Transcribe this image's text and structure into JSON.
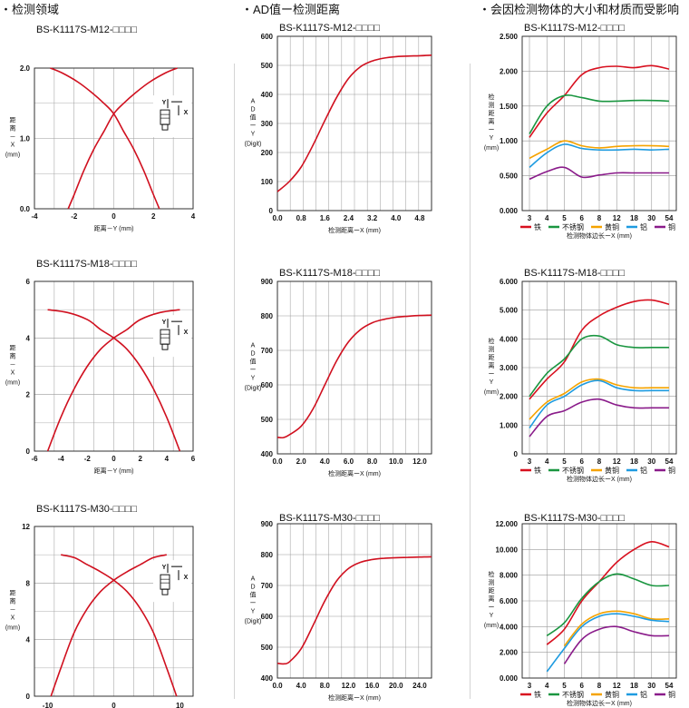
{
  "headers": [
    "・检测领域",
    "・AD值ー检测距离",
    "・会因检测物体的大小和材质而受影响"
  ],
  "colors": {
    "curve": "#d0101f",
    "grid": "#9a9a9a",
    "frame": "#222222"
  },
  "chart_data": [
    {
      "type": "line",
      "title": "BS-K1117S-M12-□□□□",
      "xlabel": "距离－Y",
      "xunit": "(mm)",
      "ylabel": "距离－X",
      "yunit": "(mm)",
      "xlim": [
        -4,
        4
      ],
      "ylim": [
        0,
        2
      ],
      "xticks": [
        "-4",
        "-2",
        "0",
        "2",
        "4"
      ],
      "yticks": [
        "0.0",
        "1.0",
        "2.0"
      ],
      "grid": true,
      "inset": "sensor-icon",
      "series": [
        {
          "color": "#d0101f",
          "x": [
            -3.2,
            -2.6,
            -1.8,
            -1.1,
            -0.5,
            0,
            0.5,
            1.0,
            1.5,
            2.0,
            2.3
          ],
          "y": [
            2.0,
            1.93,
            1.8,
            1.65,
            1.5,
            1.35,
            1.1,
            0.85,
            0.55,
            0.2,
            0
          ]
        },
        {
          "color": "#d0101f",
          "x": [
            -2.3,
            -2.0,
            -1.5,
            -1.0,
            -0.5,
            0,
            0.5,
            1.1,
            1.8,
            2.6,
            3.2
          ],
          "y": [
            0,
            0.2,
            0.55,
            0.85,
            1.1,
            1.35,
            1.5,
            1.65,
            1.8,
            1.93,
            2.0
          ]
        }
      ]
    },
    {
      "type": "line",
      "title": "BS-K1117S-M12-□□□□",
      "xlabel": "检测距离ーX",
      "xunit": "(mm)",
      "ylabel": "AD值ーY",
      "yunit": "(Digit)",
      "xlim": [
        0,
        5.2
      ],
      "ylim": [
        0,
        600
      ],
      "xticks": [
        "0.0",
        "0.8",
        "1.6",
        "2.4",
        "3.2",
        "4.0",
        "4.8"
      ],
      "yticks": [
        "0",
        "100",
        "200",
        "300",
        "400",
        "500",
        "600"
      ],
      "grid": true,
      "series": [
        {
          "color": "#d0101f",
          "x": [
            0,
            0.4,
            0.8,
            1.2,
            1.6,
            2.0,
            2.4,
            2.8,
            3.2,
            3.6,
            4.0,
            4.4,
            4.8,
            5.2
          ],
          "y": [
            65,
            100,
            150,
            225,
            310,
            390,
            455,
            495,
            515,
            525,
            530,
            532,
            533,
            535
          ]
        }
      ]
    },
    {
      "type": "line",
      "title": "BS-K1117S-M12-□□□□",
      "xlabel": "检测物体边长ーX",
      "xunit": "(mm)",
      "ylabel": "检测距离ーY",
      "yunit": "(mm)",
      "categories": [
        "3",
        "4",
        "5",
        "6",
        "8",
        "12",
        "18",
        "30",
        "54"
      ],
      "ylim": [
        0,
        2.5
      ],
      "yticks": [
        "0.000",
        "0.500",
        "1.000",
        "1.500",
        "2.000",
        "2.500"
      ],
      "grid": true,
      "series": [
        {
          "name": "铁",
          "color": "#d8101f",
          "values": [
            1.05,
            1.4,
            1.65,
            1.95,
            2.05,
            2.07,
            2.05,
            2.08,
            2.03
          ]
        },
        {
          "name": "不锈钢",
          "color": "#1a9640",
          "values": [
            1.1,
            1.5,
            1.65,
            1.62,
            1.57,
            1.57,
            1.58,
            1.58,
            1.57
          ]
        },
        {
          "name": "黄铜",
          "color": "#f5a300",
          "values": [
            0.75,
            0.88,
            1.0,
            0.93,
            0.9,
            0.92,
            0.93,
            0.93,
            0.92
          ]
        },
        {
          "name": "铝",
          "color": "#1e9be0",
          "values": [
            0.62,
            0.83,
            0.95,
            0.89,
            0.87,
            0.87,
            0.88,
            0.87,
            0.88
          ]
        },
        {
          "name": "铜",
          "color": "#8a1b8a",
          "values": [
            0.45,
            0.56,
            0.62,
            0.48,
            0.51,
            0.54,
            0.54,
            0.54,
            0.54
          ]
        }
      ]
    },
    {
      "type": "line",
      "title": "BS-K1117S-M18-□□□□",
      "xlabel": "距离－Y",
      "xunit": "(mm)",
      "ylabel": "距离－X",
      "yunit": "(mm)",
      "xlim": [
        -6,
        6
      ],
      "ylim": [
        0,
        6
      ],
      "xticks": [
        "-6",
        "-4",
        "-2",
        "0",
        "2",
        "4",
        "6"
      ],
      "yticks": [
        "0",
        "2",
        "4",
        "6"
      ],
      "grid": true,
      "inset": "sensor-icon",
      "series": [
        {
          "color": "#d0101f",
          "x": [
            -5,
            -3.5,
            -2,
            -1,
            0,
            1,
            2,
            3,
            4,
            5
          ],
          "y": [
            5.0,
            4.9,
            4.65,
            4.3,
            4.0,
            3.6,
            3.0,
            2.2,
            1.2,
            0
          ]
        },
        {
          "color": "#d0101f",
          "x": [
            -5,
            -4,
            -3,
            -2,
            -1,
            0,
            1,
            2,
            3.5,
            5
          ],
          "y": [
            0,
            1.2,
            2.2,
            3.0,
            3.6,
            4.0,
            4.3,
            4.65,
            4.9,
            5.0
          ]
        }
      ]
    },
    {
      "type": "line",
      "title": "BS-K1117S-M18-□□□□",
      "xlabel": "检测距离ーX",
      "xunit": "(mm)",
      "ylabel": "AD值ーY",
      "yunit": "(Digit)",
      "xlim": [
        0,
        13
      ],
      "ylim": [
        400,
        900
      ],
      "xticks": [
        "0.0",
        "2.0",
        "4.0",
        "6.0",
        "8.0",
        "10.0",
        "12.0"
      ],
      "yticks": [
        "400",
        "500",
        "600",
        "700",
        "800",
        "900"
      ],
      "grid": true,
      "series": [
        {
          "color": "#d0101f",
          "x": [
            0,
            0.5,
            1,
            2,
            3,
            4,
            5,
            6,
            7,
            8,
            9,
            10,
            11,
            12,
            13
          ],
          "y": [
            448,
            447,
            455,
            480,
            530,
            600,
            670,
            725,
            760,
            780,
            790,
            796,
            799,
            801,
            802
          ]
        }
      ]
    },
    {
      "type": "line",
      "title": "BS-K1117S-M18-□□□□",
      "xlabel": "检测物体边长ーX",
      "xunit": "(mm)",
      "ylabel": "检测距离ーY",
      "yunit": "(mm)",
      "categories": [
        "3",
        "4",
        "5",
        "6",
        "8",
        "12",
        "18",
        "30",
        "54"
      ],
      "ylim": [
        0,
        6
      ],
      "yticks": [
        "0",
        "1.000",
        "2.000",
        "3.000",
        "4.000",
        "5.000",
        "6.000"
      ],
      "grid": true,
      "series": [
        {
          "name": "铁",
          "color": "#d8101f",
          "values": [
            1.9,
            2.6,
            3.2,
            4.3,
            4.8,
            5.1,
            5.3,
            5.35,
            5.2
          ]
        },
        {
          "name": "不锈钢",
          "color": "#1a9640",
          "values": [
            2.0,
            2.8,
            3.3,
            4.0,
            4.1,
            3.8,
            3.7,
            3.7,
            3.7
          ]
        },
        {
          "name": "黄铜",
          "color": "#f5a300",
          "values": [
            1.2,
            1.8,
            2.1,
            2.5,
            2.6,
            2.4,
            2.3,
            2.3,
            2.3
          ]
        },
        {
          "name": "铝",
          "color": "#1e9be0",
          "values": [
            0.9,
            1.7,
            2.0,
            2.4,
            2.55,
            2.3,
            2.2,
            2.2,
            2.2
          ]
        },
        {
          "name": "铜",
          "color": "#8a1b8a",
          "values": [
            0.6,
            1.3,
            1.5,
            1.8,
            1.9,
            1.7,
            1.6,
            1.6,
            1.6
          ]
        }
      ]
    },
    {
      "type": "line",
      "title": "BS-K1117S-M30-□□□□",
      "xlabel": "距离－Y",
      "xunit": "(mm)",
      "ylabel": "距离－X",
      "yunit": "(mm)",
      "xlim": [
        -12,
        12
      ],
      "ylim": [
        0,
        12
      ],
      "xticks": [
        "-10",
        "0",
        "10"
      ],
      "xtickvals": [
        -10,
        0,
        10
      ],
      "yticks": [
        "0",
        "4",
        "8",
        "12"
      ],
      "grid": true,
      "inset": "sensor-icon",
      "series": [
        {
          "color": "#d0101f",
          "x": [
            -8,
            -6,
            -4,
            -2,
            0,
            2,
            4,
            6,
            8,
            9.5
          ],
          "y": [
            10,
            9.8,
            9.3,
            8.8,
            8.2,
            7.4,
            6.2,
            4.5,
            2,
            0
          ]
        },
        {
          "color": "#d0101f",
          "x": [
            -9.5,
            -8,
            -6,
            -4,
            -2,
            0,
            2,
            4,
            6,
            8
          ],
          "y": [
            0,
            2,
            4.5,
            6.2,
            7.4,
            8.2,
            8.8,
            9.3,
            9.8,
            10
          ]
        }
      ]
    },
    {
      "type": "line",
      "title": "BS-K1117S-M30-□□□□",
      "xlabel": "检测距离ーX",
      "xunit": "(mm)",
      "ylabel": "AD值ーY",
      "yunit": "(Digit)",
      "xlim": [
        0,
        26
      ],
      "ylim": [
        400,
        900
      ],
      "xticks": [
        "0.0",
        "4.0",
        "8.0",
        "12.0",
        "16.0",
        "20.0",
        "24.0"
      ],
      "yticks": [
        "400",
        "500",
        "600",
        "700",
        "800",
        "900"
      ],
      "grid": true,
      "series": [
        {
          "color": "#d0101f",
          "x": [
            0,
            1,
            2,
            4,
            6,
            8,
            10,
            12,
            14,
            16,
            18,
            20,
            22,
            24,
            26
          ],
          "y": [
            448,
            446,
            452,
            495,
            570,
            650,
            715,
            755,
            775,
            784,
            788,
            790,
            791,
            792,
            793
          ]
        }
      ]
    },
    {
      "type": "line",
      "title": "BS-K1117S-M30-□□□□",
      "xlabel": "检测物体边长ーX",
      "xunit": "(mm)",
      "ylabel": "检测距离ーY",
      "yunit": "(mm)",
      "categories": [
        "3",
        "4",
        "5",
        "6",
        "8",
        "12",
        "18",
        "30",
        "54"
      ],
      "ylim": [
        0,
        12
      ],
      "yticks": [
        "0.000",
        "2.000",
        "4.000",
        "6.000",
        "8.000",
        "10.000",
        "12.000"
      ],
      "grid": true,
      "series": [
        {
          "name": "铁",
          "color": "#d8101f",
          "values": [
            null,
            2.6,
            3.8,
            6.0,
            7.5,
            9.0,
            10.0,
            10.6,
            10.2
          ]
        },
        {
          "name": "不锈钢",
          "color": "#1a9640",
          "values": [
            null,
            3.3,
            4.3,
            6.2,
            7.5,
            8.1,
            7.7,
            7.2,
            7.2
          ]
        },
        {
          "name": "黄铜",
          "color": "#f5a300",
          "values": [
            null,
            null,
            2.5,
            4.2,
            5.0,
            5.2,
            5.0,
            4.6,
            4.6
          ]
        },
        {
          "name": "铝",
          "color": "#1e9be0",
          "values": [
            null,
            0.5,
            2.3,
            4.0,
            4.8,
            5.0,
            4.8,
            4.5,
            4.4
          ]
        },
        {
          "name": "铜",
          "color": "#8a1b8a",
          "values": [
            null,
            null,
            1.1,
            3.0,
            3.8,
            4.0,
            3.6,
            3.3,
            3.3
          ]
        }
      ]
    }
  ]
}
